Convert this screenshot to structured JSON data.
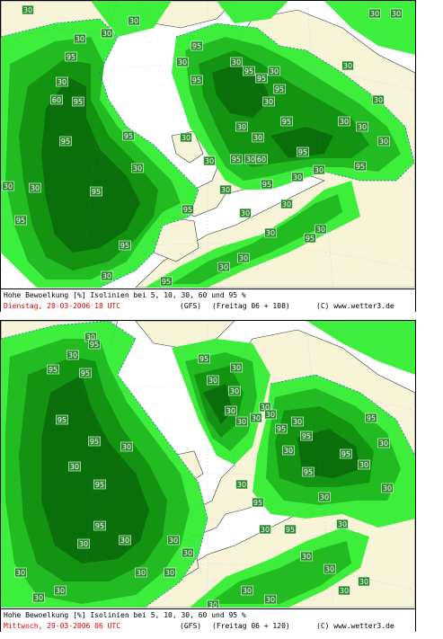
{
  "maps": [
    {
      "id": "top",
      "caption_line1": "Hohe Bewoelkung [%] Isolinien bei 5, 10, 30, 60 und 95 %",
      "date_text": "Dienstag, 28-03-2006  18 UTC",
      "model_text": "(GFS)",
      "run_text": "(Freitag 06 + 108)",
      "copyright_text": "(C) www.wetter3.de",
      "contour_labels": [
        "30",
        "30",
        "30",
        "30",
        "95",
        "30",
        "60",
        "95",
        "95",
        "95",
        "95",
        "95",
        "95",
        "30",
        "30",
        "30",
        "30",
        "30",
        "95",
        "30",
        "95",
        "30",
        "95",
        "95",
        "30",
        "95",
        "30",
        "30",
        "95",
        "30",
        "30",
        "95",
        "30",
        "60",
        "95",
        "30",
        "30",
        "30",
        "30",
        "30",
        "30",
        "30",
        "30",
        "95",
        "30",
        "95",
        "30",
        "95",
        "30",
        "30",
        "30",
        "30",
        "30",
        "95",
        "30",
        "95"
      ]
    },
    {
      "id": "bottom",
      "caption_line1": "Hohe Bewoelkung [%] Isolinien bei 5, 10, 30, 60 und 95 %",
      "date_text": "Mittwoch, 29-03-2006  06 UTC",
      "model_text": "(GFS)",
      "run_text": "(Freitag 06 + 120)",
      "copyright_text": "(C) www.wetter3.de",
      "contour_labels": [
        "30",
        "30",
        "95",
        "95",
        "95",
        "95",
        "30",
        "95",
        "30",
        "95",
        "95",
        "30",
        "30",
        "30",
        "30",
        "30",
        "95",
        "30",
        "30",
        "30",
        "30",
        "30",
        "30",
        "30",
        "30",
        "95",
        "30",
        "95",
        "30",
        "95",
        "30",
        "95",
        "30",
        "95",
        "30",
        "30",
        "30",
        "95",
        "30",
        "30",
        "95",
        "30",
        "30",
        "30",
        "30",
        "30",
        "30",
        "30",
        "30",
        "30",
        "30",
        "30"
      ]
    }
  ],
  "colors": {
    "land": "#f8f4d8",
    "sea": "#ffffff",
    "cloud_5": "#33ee33",
    "cloud_30": "#22bb22",
    "cloud_60": "#129312",
    "cloud_95": "#0a6e0a",
    "isoline": "#2255dd",
    "date_red": "#e00000"
  }
}
